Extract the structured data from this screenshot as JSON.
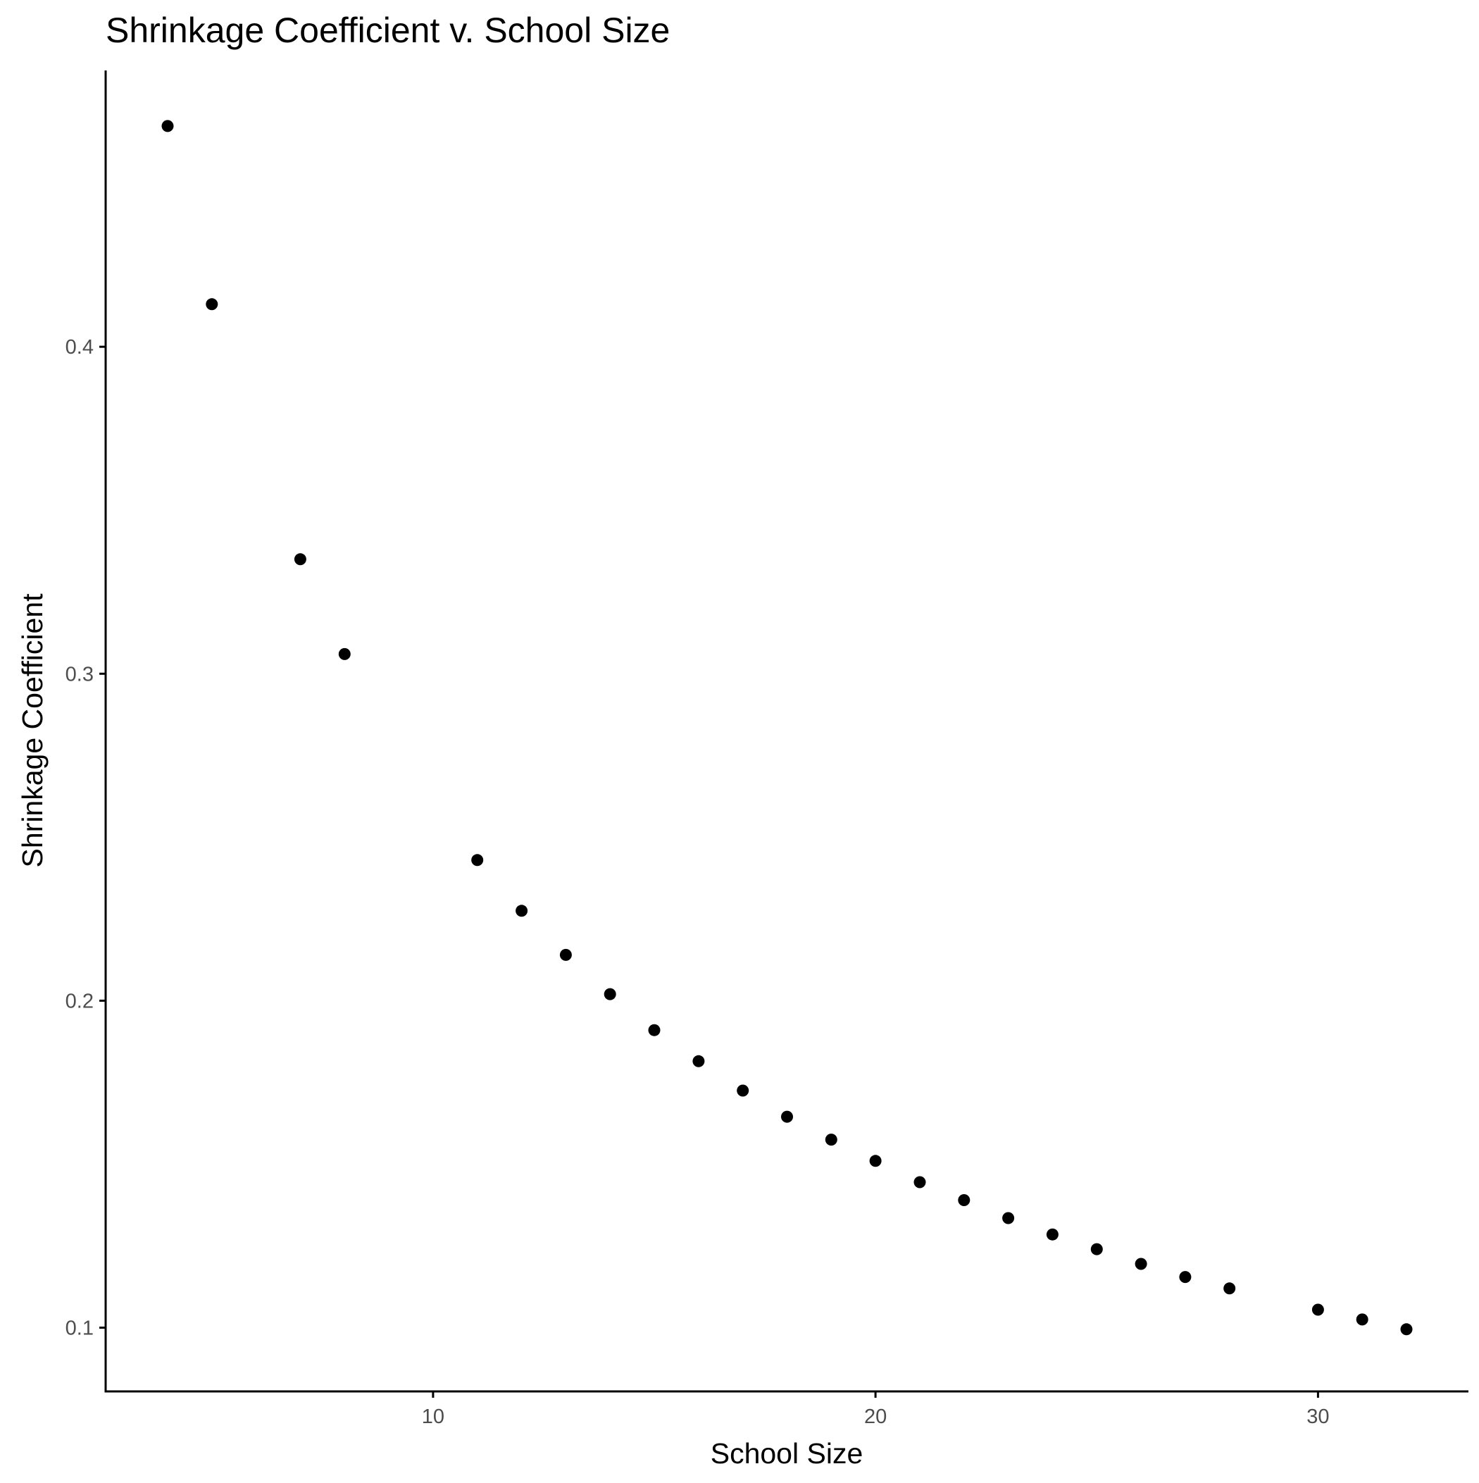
{
  "chart_data": {
    "type": "scatter",
    "title": "Shrinkage Coefficient v. School Size",
    "xlabel": "School Size",
    "ylabel": "Shrinkage Coefficient",
    "xlim": [
      2.6,
      33.4
    ],
    "ylim": [
      0.0805,
      0.4845
    ],
    "xticks": [
      10,
      20,
      30
    ],
    "xtick_labels": [
      "10",
      "20",
      "30"
    ],
    "yticks": [
      0.1,
      0.2,
      0.3,
      0.4
    ],
    "ytick_labels": [
      "0.1",
      "0.2",
      "0.3",
      "0.4"
    ],
    "grid": false,
    "legend": false,
    "point_color": "#000000",
    "axis_color": "#000000",
    "points": [
      {
        "x": 4,
        "y": 0.4675
      },
      {
        "x": 5,
        "y": 0.413
      },
      {
        "x": 7,
        "y": 0.335
      },
      {
        "x": 8,
        "y": 0.306
      },
      {
        "x": 11,
        "y": 0.243
      },
      {
        "x": 12,
        "y": 0.2275
      },
      {
        "x": 13,
        "y": 0.214
      },
      {
        "x": 14,
        "y": 0.202
      },
      {
        "x": 15,
        "y": 0.191
      },
      {
        "x": 16,
        "y": 0.1815
      },
      {
        "x": 17,
        "y": 0.1725
      },
      {
        "x": 18,
        "y": 0.1645
      },
      {
        "x": 19,
        "y": 0.1575
      },
      {
        "x": 20,
        "y": 0.151
      },
      {
        "x": 21,
        "y": 0.1445
      },
      {
        "x": 22,
        "y": 0.139
      },
      {
        "x": 23,
        "y": 0.1335
      },
      {
        "x": 24,
        "y": 0.1285
      },
      {
        "x": 25,
        "y": 0.124
      },
      {
        "x": 26,
        "y": 0.1195
      },
      {
        "x": 27,
        "y": 0.1155
      },
      {
        "x": 28,
        "y": 0.112
      },
      {
        "x": 30,
        "y": 0.1055
      },
      {
        "x": 31,
        "y": 0.1025
      },
      {
        "x": 32,
        "y": 0.0995
      }
    ]
  }
}
